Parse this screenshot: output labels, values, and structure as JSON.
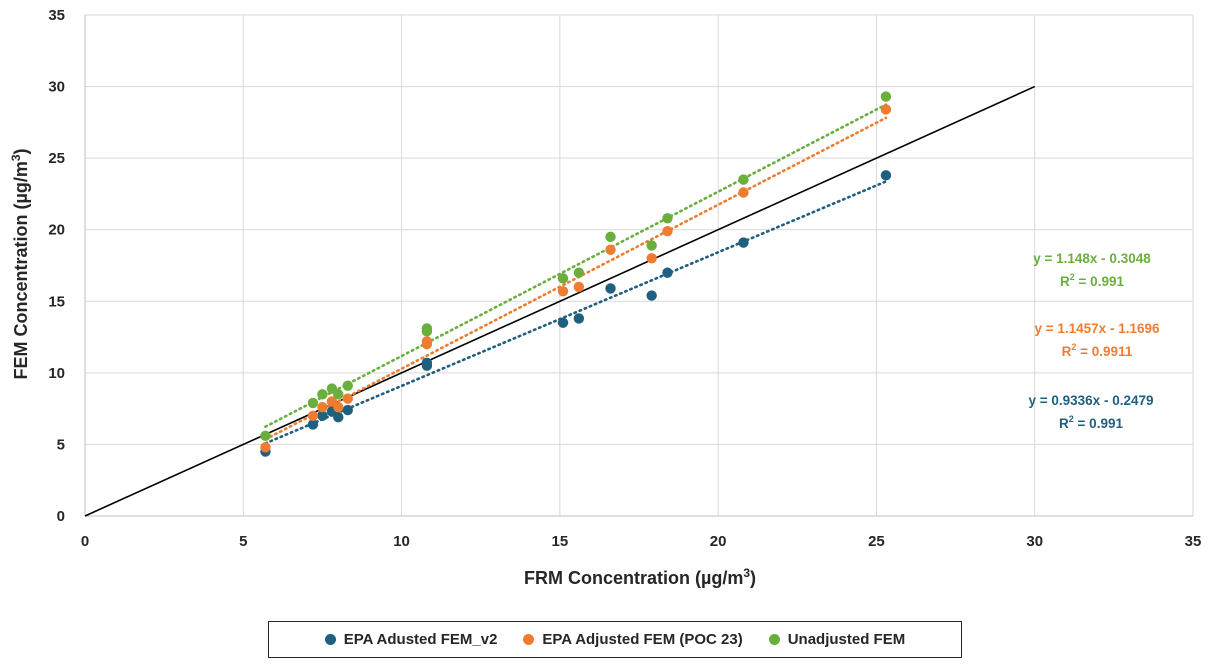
{
  "chart_data": {
    "type": "scatter",
    "xlabel_main": "FRM Concentration (µg/m",
    "xlabel_sup": "3",
    "xlabel_end": ")",
    "ylabel_main": "FEM Concentration (µg/m",
    "ylabel_sup": "3",
    "ylabel_end": ")",
    "xlim": [
      0,
      35
    ],
    "ylim": [
      0,
      35
    ],
    "x_ticks": [
      "0",
      "5",
      "10",
      "15",
      "20",
      "25",
      "30",
      "35"
    ],
    "y_ticks": [
      "0",
      "5",
      "10",
      "15",
      "20",
      "25",
      "30",
      "35"
    ],
    "grid": true,
    "legend_position": "bottom",
    "reference_line": {
      "x": [
        0,
        30
      ],
      "y": [
        0,
        30
      ],
      "color": "#000000"
    },
    "series": [
      {
        "name": "EPA Adusted FEM_v2",
        "color": "#1F5F7F",
        "points": [
          [
            5.7,
            4.5
          ],
          [
            7.2,
            6.4
          ],
          [
            7.5,
            7.0
          ],
          [
            7.8,
            7.3
          ],
          [
            8.0,
            6.9
          ],
          [
            8.3,
            7.4
          ],
          [
            10.8,
            10.5
          ],
          [
            10.8,
            10.7
          ],
          [
            15.1,
            13.5
          ],
          [
            15.6,
            13.8
          ],
          [
            16.6,
            15.9
          ],
          [
            17.9,
            15.4
          ],
          [
            18.4,
            17.0
          ],
          [
            20.8,
            19.1
          ],
          [
            25.3,
            23.8
          ]
        ],
        "trendline": {
          "slope": 0.9336,
          "intercept": -0.2479
        },
        "equation": "y = 0.9336x - 0.2479",
        "r2_prefix": "R",
        "r2_sup": "2",
        "r2_value": " = 0.991"
      },
      {
        "name": "EPA Adjusted FEM (POC 23)",
        "color": "#EE7D31",
        "points": [
          [
            5.7,
            4.8
          ],
          [
            7.2,
            7.0
          ],
          [
            7.5,
            7.6
          ],
          [
            7.8,
            8.0
          ],
          [
            8.0,
            7.6
          ],
          [
            8.3,
            8.2
          ],
          [
            10.8,
            12.0
          ],
          [
            10.8,
            12.2
          ],
          [
            15.1,
            15.7
          ],
          [
            15.6,
            16.0
          ],
          [
            16.6,
            18.6
          ],
          [
            17.9,
            18.0
          ],
          [
            18.4,
            19.9
          ],
          [
            20.8,
            22.6
          ],
          [
            25.3,
            28.4
          ]
        ],
        "trendline": {
          "slope": 1.1457,
          "intercept": -1.1696
        },
        "equation": "y = 1.1457x - 1.1696",
        "r2_prefix": "R",
        "r2_sup": "2",
        "r2_value": " = 0.9911"
      },
      {
        "name": "Unadjusted FEM",
        "color": "#6AAF3D",
        "points": [
          [
            5.7,
            5.6
          ],
          [
            7.2,
            7.9
          ],
          [
            7.5,
            8.5
          ],
          [
            7.8,
            8.9
          ],
          [
            8.0,
            8.5
          ],
          [
            8.3,
            9.1
          ],
          [
            10.8,
            12.9
          ],
          [
            10.8,
            13.1
          ],
          [
            15.1,
            16.6
          ],
          [
            15.6,
            17.0
          ],
          [
            16.6,
            19.5
          ],
          [
            17.9,
            18.9
          ],
          [
            18.4,
            20.8
          ],
          [
            20.8,
            23.5
          ],
          [
            25.3,
            29.3
          ]
        ],
        "trendline": {
          "slope": 1.148,
          "intercept": -0.3048
        },
        "equation": "y = 1.148x - 0.3048",
        "r2_prefix": "R",
        "r2_sup": "2",
        "r2_value": " = 0.991"
      }
    ]
  }
}
